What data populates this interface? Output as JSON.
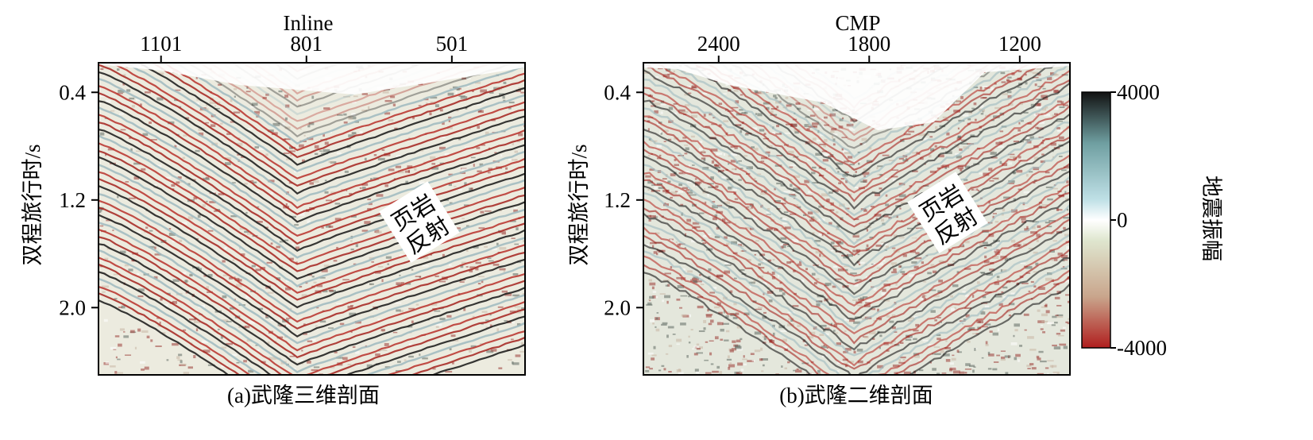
{
  "chart_data": [
    {
      "type": "heatmap",
      "caption": "(a)武隆三维剖面",
      "xlabel": "Inline",
      "ylabel": "双程旅行时/s",
      "x_ticks": [
        "1101",
        "801",
        "501"
      ],
      "x_tick_values": [
        1101,
        801,
        501
      ],
      "y_ticks": [
        "0.4",
        "1.2",
        "2.0"
      ],
      "y_tick_values": [
        0.4,
        1.2,
        2.0
      ],
      "xlim": [
        1230,
        350
      ],
      "ylim": [
        0.18,
        2.5
      ],
      "annotation": [
        "页岩",
        "反射"
      ],
      "horizon_apex": {
        "x": 820,
        "t": 1.52
      },
      "horizon_left_edge": {
        "x": 1230,
        "t": 0.62
      },
      "horizon_right_edge": {
        "x": 350,
        "t": 0.95
      }
    },
    {
      "type": "heatmap",
      "caption": "(b)武隆二维剖面",
      "xlabel": "CMP",
      "ylabel": "双程旅行时/s",
      "x_ticks": [
        "2400",
        "1800",
        "1200"
      ],
      "x_tick_values": [
        2400,
        1800,
        1200
      ],
      "y_ticks": [
        "0.4",
        "1.2",
        "2.0"
      ],
      "y_tick_values": [
        0.4,
        1.2,
        2.0
      ],
      "xlim": [
        2700,
        1000
      ],
      "ylim": [
        0.18,
        2.5
      ],
      "annotation": [
        "页岩",
        "反射"
      ],
      "horizon_apex": {
        "x": 1860,
        "t": 1.62
      },
      "horizon_left_edge": {
        "x": 2700,
        "t": 0.62
      },
      "horizon_right_edge": {
        "x": 1000,
        "t": 0.72
      }
    }
  ],
  "colorbar": {
    "label": "地震振幅",
    "ticks": [
      "4000",
      "0",
      "-4000"
    ],
    "tick_values": [
      4000,
      0,
      -4000
    ],
    "range": [
      -4000,
      4000
    ],
    "colors": [
      "#b01e1e",
      "#c9a58c",
      "#dfe6cf",
      "#ffffff",
      "#bfe0e6",
      "#6f9fa1",
      "#121212"
    ]
  }
}
